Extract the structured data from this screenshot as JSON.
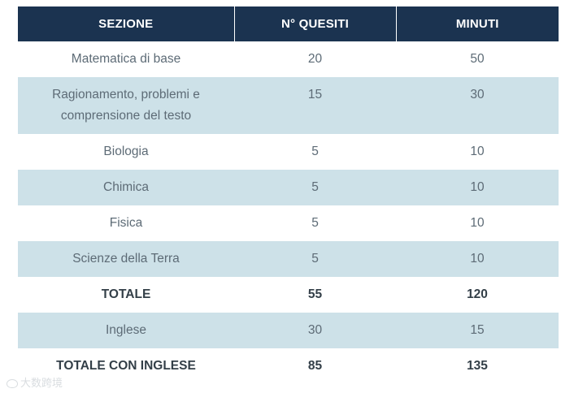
{
  "table": {
    "headers": [
      "SEZIONE",
      "N° QUESITI",
      "MINUTI"
    ],
    "rows": [
      {
        "section": "Matematica di base",
        "questions": "20",
        "minutes": "50"
      },
      {
        "section": "Ragionamento, problemi e comprensione del testo",
        "questions": "15",
        "minutes": "30"
      },
      {
        "section": "Biologia",
        "questions": "5",
        "minutes": "10"
      },
      {
        "section": "Chimica",
        "questions": "5",
        "minutes": "10"
      },
      {
        "section": "Fisica",
        "questions": "5",
        "minutes": "10"
      },
      {
        "section": "Scienze della Terra",
        "questions": "5",
        "minutes": "10"
      },
      {
        "section": "TOTALE",
        "questions": "55",
        "minutes": "120"
      },
      {
        "section": "Inglese",
        "questions": "30",
        "minutes": "15"
      },
      {
        "section": "TOTALE CON INGLESE",
        "questions": "85",
        "minutes": "135"
      }
    ]
  },
  "watermark": {
    "text": "大数跨境",
    "icon": "bird-logo-icon"
  },
  "colors": {
    "header_bg": "#1b3350",
    "stripe_bg": "#cde1e8",
    "text": "#5d6b76",
    "total_text": "#333f48"
  }
}
